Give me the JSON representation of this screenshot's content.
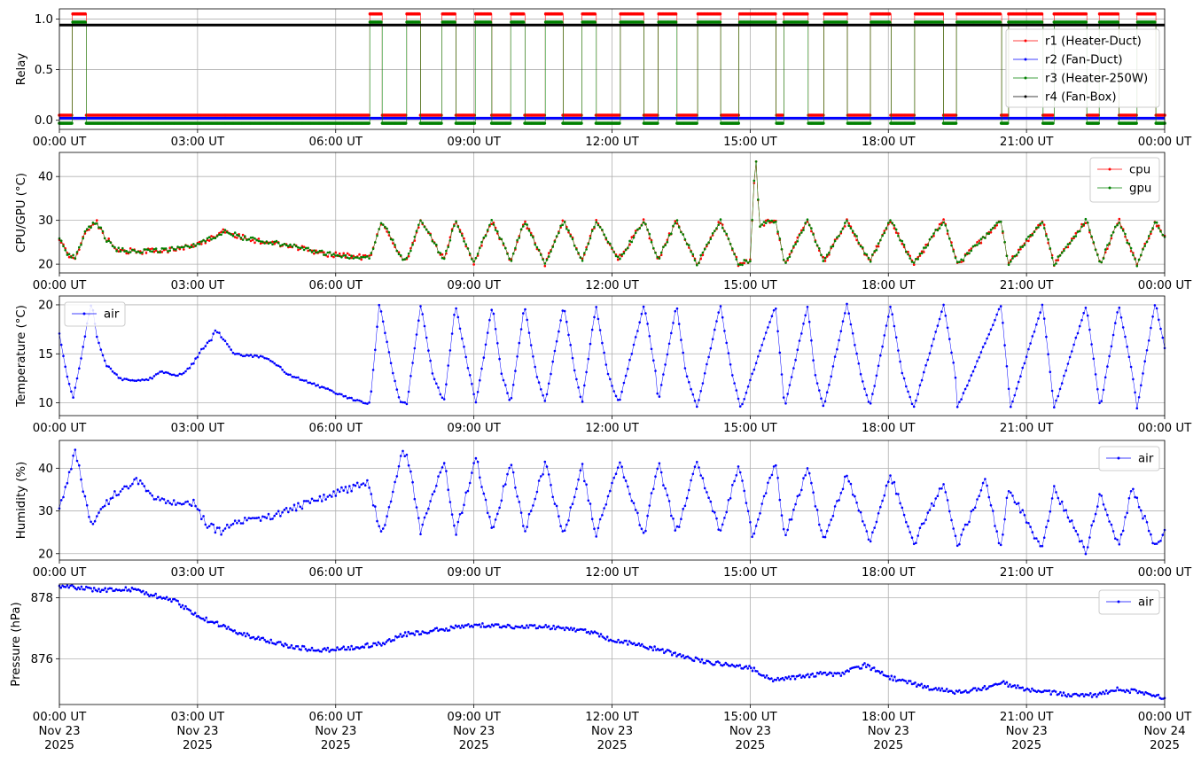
{
  "chart_data": [
    {
      "type": "line",
      "ylabel": "Relay",
      "ylim": [
        -0.09,
        1.1
      ],
      "yticks": [
        0.0,
        0.5,
        1.0
      ],
      "ytick_labels": [
        "0.0",
        "0.5",
        "1.0"
      ],
      "grid": true,
      "legend_placement": "right",
      "x_domain_hours": [
        0,
        24
      ],
      "xticks_hours": [
        0,
        3,
        6,
        9,
        12,
        15,
        18,
        21,
        24
      ],
      "xtick_labels": [
        "00:00 UT",
        "03:00 UT",
        "06:00 UT",
        "09:00 UT",
        "12:00 UT",
        "15:00 UT",
        "18:00 UT",
        "21:00 UT",
        "00:00 UT"
      ],
      "relay_on_intervals_hours": [
        [
          0.28,
          0.58
        ],
        [
          6.73,
          7.0
        ],
        [
          7.53,
          7.83
        ],
        [
          8.3,
          8.6
        ],
        [
          9.03,
          9.38
        ],
        [
          9.8,
          10.1
        ],
        [
          10.55,
          10.93
        ],
        [
          11.35,
          11.65
        ],
        [
          12.18,
          12.68
        ],
        [
          13.0,
          13.4
        ],
        [
          13.85,
          14.35
        ],
        [
          14.75,
          15.55
        ],
        [
          15.73,
          16.25
        ],
        [
          16.6,
          17.1
        ],
        [
          17.6,
          18.05
        ],
        [
          18.57,
          19.2
        ],
        [
          19.48,
          20.45
        ],
        [
          20.6,
          21.35
        ],
        [
          21.6,
          22.3
        ],
        [
          22.58,
          23.0
        ],
        [
          23.4,
          23.8
        ]
      ],
      "series": [
        {
          "name": "r1 (Heater-Duct)",
          "color": "#ff0000",
          "on_value": 1.05,
          "off_value": 0.05,
          "pattern": "switching"
        },
        {
          "name": "r2 (Fan-Duct)",
          "color": "#0000ff",
          "on_value": 0.02,
          "off_value": 0.02,
          "pattern": "constant"
        },
        {
          "name": "r3 (Heater-250W)",
          "color": "#008000",
          "on_value": 0.97,
          "off_value": -0.03,
          "pattern": "switching"
        },
        {
          "name": "r4 (Fan-Box)",
          "color": "#000000",
          "on_value": 0.94,
          "off_value": 0.94,
          "pattern": "constant"
        }
      ]
    },
    {
      "type": "line",
      "ylabel": "CPU/GPU (°C)",
      "ylim": [
        18,
        45.5
      ],
      "yticks": [
        20,
        30,
        40
      ],
      "ytick_labels": [
        "20",
        "30",
        "40"
      ],
      "grid": true,
      "legend_placement": "upper right",
      "x_domain_hours": [
        0,
        24
      ],
      "xticks_hours": [
        0,
        3,
        6,
        9,
        12,
        15,
        18,
        21,
        24
      ],
      "xtick_labels": [
        "00:00 UT",
        "03:00 UT",
        "06:00 UT",
        "09:00 UT",
        "12:00 UT",
        "15:00 UT",
        "18:00 UT",
        "21:00 UT",
        "00:00 UT"
      ],
      "series": [
        {
          "name": "cpu",
          "color": "#ff0000"
        },
        {
          "name": "gpu",
          "color": "#008000"
        }
      ],
      "x": [
        0,
        0.2,
        0.35,
        0.55,
        0.8,
        1.0,
        1.2,
        1.5,
        2.0,
        2.5,
        3.0,
        3.3,
        3.6,
        4.0,
        4.5,
        5.0,
        5.5,
        6.0,
        6.6,
        6.75,
        7.0,
        7.45,
        7.55,
        7.85,
        8.35,
        8.6,
        9.0,
        9.4,
        9.8,
        10.1,
        10.55,
        10.95,
        11.35,
        11.65,
        12.15,
        12.7,
        13.0,
        13.4,
        13.85,
        14.35,
        14.75,
        15.0,
        15.08,
        15.13,
        15.2,
        15.55,
        15.75,
        16.25,
        16.6,
        17.1,
        17.6,
        18.05,
        18.55,
        19.2,
        19.5,
        20.45,
        20.6,
        21.35,
        21.6,
        22.3,
        22.6,
        23.0,
        23.4,
        23.8,
        24.0
      ],
      "values": [
        26,
        22,
        21.5,
        27,
        30,
        26,
        23.5,
        23,
        23,
        23.5,
        24.5,
        26,
        27.5,
        26,
        25,
        24.5,
        23,
        22,
        21.5,
        21.5,
        30,
        21,
        21,
        30,
        21,
        30,
        20.5,
        30,
        20.5,
        30,
        20,
        30,
        21,
        30,
        21,
        30,
        21,
        30,
        20,
        30,
        20,
        21,
        38,
        44,
        29,
        30,
        20,
        30,
        20.5,
        30,
        20.5,
        30,
        20,
        30,
        20,
        30,
        20,
        30,
        20,
        30,
        20,
        30,
        20,
        30,
        26
      ]
    },
    {
      "type": "line",
      "ylabel": "Temperature (°C)",
      "ylim": [
        8.7,
        20.9
      ],
      "yticks": [
        10,
        15,
        20
      ],
      "ytick_labels": [
        "10",
        "15",
        "20"
      ],
      "grid": true,
      "legend_placement": "upper left",
      "x_domain_hours": [
        0,
        24
      ],
      "xticks_hours": [
        0,
        3,
        6,
        9,
        12,
        15,
        18,
        21,
        24
      ],
      "xtick_labels": [
        "00:00 UT",
        "03:00 UT",
        "06:00 UT",
        "09:00 UT",
        "12:00 UT",
        "15:00 UT",
        "18:00 UT",
        "21:00 UT",
        "00:00 UT"
      ],
      "series": [
        {
          "name": "air",
          "color": "#0000ff"
        }
      ],
      "x": [
        0,
        0.15,
        0.3,
        0.45,
        0.6,
        0.7,
        0.8,
        1.0,
        1.3,
        1.6,
        2.0,
        2.2,
        2.5,
        2.7,
        2.9,
        3.1,
        3.3,
        3.4,
        3.55,
        3.8,
        4.0,
        4.3,
        4.6,
        5.0,
        5.5,
        6.0,
        6.6,
        6.75,
        6.95,
        7.2,
        7.4,
        7.55,
        7.85,
        8.1,
        8.35,
        8.6,
        8.9,
        9.05,
        9.4,
        9.6,
        9.8,
        10.1,
        10.35,
        10.55,
        10.95,
        11.2,
        11.35,
        11.65,
        11.9,
        12.15,
        12.7,
        12.95,
        13.0,
        13.4,
        13.6,
        13.85,
        14.35,
        14.6,
        14.8,
        15.55,
        15.75,
        16.25,
        16.4,
        16.6,
        17.1,
        17.4,
        17.6,
        18.05,
        18.3,
        18.55,
        19.2,
        19.45,
        19.5,
        20.45,
        20.65,
        21.35,
        21.6,
        22.3,
        22.5,
        22.6,
        23.0,
        23.3,
        23.4,
        23.8,
        24.0
      ],
      "values": [
        17,
        13,
        10.5,
        14,
        18,
        20.3,
        17,
        14,
        12.5,
        12.2,
        12.5,
        13.2,
        12.8,
        13,
        14,
        15.5,
        16.5,
        17.5,
        16.5,
        15,
        14.8,
        14.8,
        14.3,
        12.8,
        12,
        11,
        10,
        10,
        20.3,
        14,
        10,
        10,
        20,
        13,
        10,
        20,
        13,
        10,
        20,
        13,
        10,
        20,
        13,
        10,
        20,
        13,
        10,
        20,
        13,
        10,
        20,
        13,
        10,
        20,
        13,
        9.5,
        20,
        13,
        9.5,
        20,
        9.5,
        20,
        13,
        9.5,
        20,
        13,
        9.5,
        20,
        13,
        9.5,
        20,
        13,
        9.5,
        20,
        9.5,
        20,
        9.5,
        20,
        13,
        9.5,
        20,
        13,
        9.5,
        20.3,
        15.5
      ]
    },
    {
      "type": "line",
      "ylabel": "Humidity (%)",
      "ylim": [
        18.5,
        46.5
      ],
      "yticks": [
        20,
        30,
        40
      ],
      "ytick_labels": [
        "20",
        "30",
        "40"
      ],
      "grid": true,
      "legend_placement": "upper right",
      "x_domain_hours": [
        0,
        24
      ],
      "xticks_hours": [
        0,
        3,
        6,
        9,
        12,
        15,
        18,
        21,
        24
      ],
      "xtick_labels": [
        "00:00 UT",
        "03:00 UT",
        "06:00 UT",
        "09:00 UT",
        "12:00 UT",
        "15:00 UT",
        "18:00 UT",
        "21:00 UT",
        "00:00 UT"
      ],
      "series": [
        {
          "name": "air",
          "color": "#0000ff"
        }
      ],
      "x": [
        0,
        0.2,
        0.35,
        0.55,
        0.7,
        0.9,
        1.2,
        1.5,
        1.7,
        2.0,
        2.5,
        2.9,
        3.2,
        3.5,
        3.8,
        4.2,
        4.7,
        5.2,
        5.7,
        6.2,
        6.5,
        6.7,
        7.0,
        7.25,
        7.45,
        7.55,
        7.85,
        8.35,
        8.6,
        9.05,
        9.4,
        9.8,
        10.1,
        10.55,
        10.95,
        11.35,
        11.65,
        12.15,
        12.7,
        13.0,
        13.4,
        13.85,
        14.35,
        14.75,
        15.05,
        15.55,
        15.75,
        16.25,
        16.6,
        17.1,
        17.6,
        18.05,
        18.55,
        19.2,
        19.5,
        20.1,
        20.45,
        20.6,
        21.35,
        21.6,
        22.3,
        22.6,
        23.0,
        23.3,
        23.8,
        24.0
      ],
      "values": [
        31,
        38,
        44.5,
        33,
        26,
        30,
        34,
        36,
        37,
        33,
        32,
        32,
        27,
        25,
        27,
        28,
        29,
        31,
        33,
        35,
        36,
        37,
        24,
        35,
        43.5,
        43.5,
        25,
        42,
        24.5,
        42.5,
        25,
        41.5,
        25,
        41,
        24,
        40.5,
        24.5,
        41.5,
        24.5,
        41.5,
        25,
        41.5,
        25,
        40.5,
        24,
        41.5,
        24,
        40,
        22.5,
        38.5,
        22.5,
        38.5,
        22,
        37,
        21.5,
        37,
        21,
        35.5,
        21,
        35,
        20.5,
        34.5,
        21.5,
        35.5,
        21.5,
        25
      ]
    },
    {
      "type": "line",
      "ylabel": "Pressure (hPa)",
      "ylim": [
        874.5,
        878.45
      ],
      "yticks": [
        876,
        878
      ],
      "ytick_labels": [
        "876",
        "878"
      ],
      "grid": true,
      "legend_placement": "upper right",
      "x_domain_hours": [
        0,
        24
      ],
      "xticks_hours": [
        0,
        3,
        6,
        9,
        12,
        15,
        18,
        21,
        24
      ],
      "xtick_labels": [
        "00:00 UT\nNov 23\n2025",
        "03:00 UT\nNov 23\n2025",
        "06:00 UT\nNov 23\n2025",
        "09:00 UT\nNov 23\n2025",
        "12:00 UT\nNov 23\n2025",
        "15:00 UT\nNov 23\n2025",
        "18:00 UT\nNov 23\n2025",
        "21:00 UT\nNov 23\n2025",
        "00:00 UT\nNov 24\n2025"
      ],
      "series": [
        {
          "name": "air",
          "color": "#0000ff"
        }
      ],
      "x": [
        0,
        0.5,
        1.0,
        1.5,
        2.0,
        2.5,
        3.0,
        3.5,
        4.0,
        4.5,
        5.0,
        5.5,
        6.0,
        6.5,
        7.0,
        7.5,
        8.0,
        8.5,
        9.0,
        9.5,
        10.0,
        10.5,
        11.0,
        11.5,
        12.0,
        12.5,
        13.0,
        13.5,
        14.0,
        14.5,
        15.0,
        15.5,
        16.0,
        16.5,
        17.0,
        17.5,
        18.0,
        18.5,
        19.0,
        19.5,
        20.0,
        20.5,
        21.0,
        21.5,
        22.0,
        22.5,
        23.0,
        23.5,
        24.0
      ],
      "values": [
        878.4,
        878.3,
        878.25,
        878.3,
        878.1,
        877.9,
        877.4,
        877.1,
        876.8,
        876.6,
        876.4,
        876.3,
        876.3,
        876.4,
        876.5,
        876.8,
        876.9,
        877.0,
        877.1,
        877.1,
        877.05,
        877.05,
        877.0,
        876.9,
        876.6,
        876.5,
        876.3,
        876.1,
        875.9,
        875.8,
        875.7,
        875.3,
        875.4,
        875.5,
        875.5,
        875.8,
        875.4,
        875.2,
        875.0,
        874.9,
        875.0,
        875.2,
        875.0,
        874.9,
        874.8,
        874.8,
        875.0,
        874.9,
        874.7
      ]
    }
  ]
}
